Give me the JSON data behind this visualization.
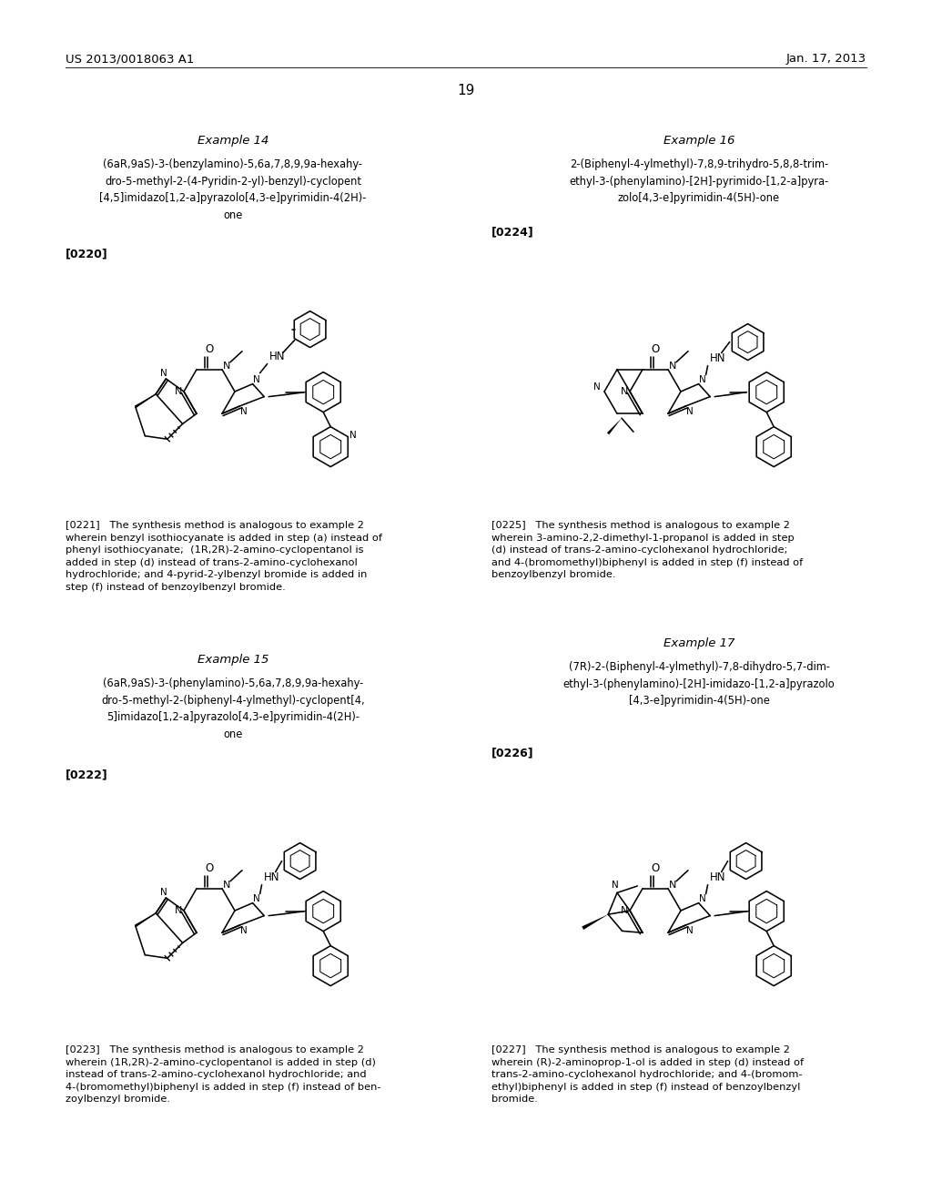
{
  "bg": "#ffffff",
  "header_left": "US 2013/0018063 A1",
  "header_right": "Jan. 17, 2013",
  "page_num": "19",
  "ex14_title": "Example 14",
  "ex14_name": "(6aR,9aS)-3-(benzylamino)-5,6a,7,8,9,9a-hexahy-\ndro-5-methyl-2-(4-Pyridin-2-yl)-benzyl)-cyclopent\n[4,5]imidazo[1,2-a]pyrazolo[4,3-e]pyrimidin-4(2H)-\none",
  "ex14_ref": "[0220]",
  "ex14_desc": "[0221]   The synthesis method is analogous to example 2\nwherein benzyl isothiocyanate is added in step (a) instead of\nphenyl isothiocyanate;  (1R,2R)-2-amino-cyclopentanol is\nadded in step (d) instead of trans-2-amino-cyclohexanol\nhydrochloride; and 4-pyrid-2-ylbenzyl bromide is added in\nstep (f) instead of benzoylbenzyl bromide.",
  "ex15_title": "Example 15",
  "ex15_name": "(6aR,9aS)-3-(phenylamino)-5,6a,7,8,9,9a-hexahy-\ndro-5-methyl-2-(biphenyl-4-ylmethyl)-cyclopent[4,\n5]imidazo[1,2-a]pyrazolo[4,3-e]pyrimidin-4(2H)-\none",
  "ex15_ref": "[0222]",
  "ex15_desc": "[0223]   The synthesis method is analogous to example 2\nwherein (1R,2R)-2-amino-cyclopentanol is added in step (d)\ninstead of trans-2-amino-cyclohexanol hydrochloride; and\n4-(bromomethyl)biphenyl is added in step (f) instead of ben-\nzoylbenzyl bromide.",
  "ex16_title": "Example 16",
  "ex16_name": "2-(Biphenyl-4-ylmethyl)-7,8,9-trihydro-5,8,8-trim-\nethyl-3-(phenylamino)-[2H]-pyrimido-[1,2-a]pyra-\nzolo[4,3-e]pyrimidin-4(5H)-one",
  "ex16_ref": "[0224]",
  "ex16_desc": "[0225]   The synthesis method is analogous to example 2\nwherein 3-amino-2,2-dimethyl-1-propanol is added in step\n(d) instead of trans-2-amino-cyclohexanol hydrochloride;\nand 4-(bromomethyl)biphenyl is added in step (f) instead of\nbenzoylbenzyl bromide.",
  "ex17_title": "Example 17",
  "ex17_name": "(7R)-2-(Biphenyl-4-ylmethyl)-7,8-dihydro-5,7-dim-\nethyl-3-(phenylamino)-[2H]-imidazo-[1,2-a]pyrazolo\n[4,3-e]pyrimidin-4(5H)-one",
  "ex17_ref": "[0226]",
  "ex17_desc": "[0227]   The synthesis method is analogous to example 2\nwherein (R)-2-aminoprop-1-ol is added in step (d) instead of\ntrans-2-amino-cyclohexanol hydrochloride; and 4-(bromom-\nethyl)biphenyl is added in step (f) instead of benzoylbenzyl\nbromide."
}
